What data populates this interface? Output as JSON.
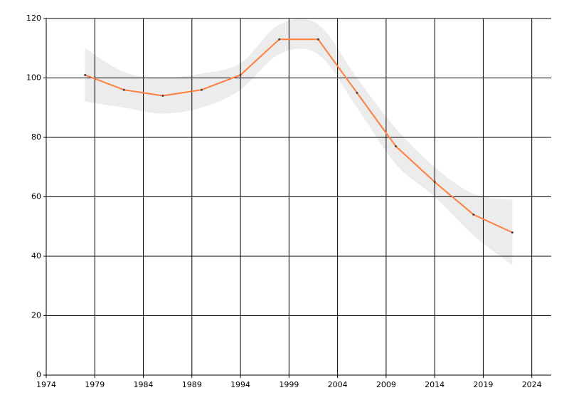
{
  "chart_data": {
    "type": "line",
    "x": [
      1978,
      1982,
      1986,
      1990,
      1994,
      1998,
      2002,
      2006,
      2010,
      2014,
      2018,
      2022
    ],
    "series": [
      {
        "color": "#ff7f3f",
        "values": [
          101,
          96,
          94,
          96,
          101,
          113,
          113,
          95,
          77,
          65,
          54,
          48
        ]
      }
    ],
    "band": {
      "color": "#ececec",
      "upper": [
        110,
        102,
        100,
        101.5,
        105,
        118,
        118,
        100,
        83,
        70,
        61,
        59
      ],
      "lower": [
        92,
        90,
        88,
        90,
        96,
        108,
        108,
        90,
        71,
        60,
        47,
        37
      ]
    },
    "xlim": [
      1974,
      2026
    ],
    "xticks": [
      1974,
      1979,
      1984,
      1989,
      1994,
      1999,
      2004,
      2009,
      2014,
      2019,
      2024
    ],
    "ylim": [
      0,
      120
    ],
    "yticks": [
      0,
      20,
      40,
      60,
      80,
      100,
      120
    ],
    "grid": true
  }
}
